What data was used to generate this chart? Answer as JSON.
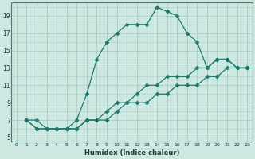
{
  "xlabel": "Humidex (Indice chaleur)",
  "bg_color": "#cce8e0",
  "grid_color": "#aaccC4",
  "line_color": "#1a7a6e",
  "xlim": [
    -0.5,
    23.5
  ],
  "ylim": [
    4.5,
    20.5
  ],
  "xticks": [
    0,
    1,
    2,
    3,
    4,
    5,
    6,
    7,
    8,
    9,
    10,
    11,
    12,
    13,
    14,
    15,
    16,
    17,
    18,
    19,
    20,
    21,
    22,
    23
  ],
  "yticks": [
    5,
    7,
    9,
    11,
    13,
    15,
    17,
    19
  ],
  "line1_x": [
    1,
    2,
    3,
    4,
    5,
    6,
    7,
    8,
    9,
    10,
    11,
    12,
    13,
    14,
    15,
    16,
    17,
    18,
    19,
    20,
    21,
    22,
    23
  ],
  "line1_y": [
    7,
    7,
    6,
    6,
    6,
    7,
    10,
    14,
    16,
    17,
    18,
    18,
    18,
    20,
    19.5,
    19,
    17,
    16,
    13,
    14,
    14,
    13,
    13
  ],
  "line2_x": [
    1,
    2,
    3,
    4,
    5,
    6,
    7,
    8,
    9,
    10,
    11,
    12,
    13,
    14,
    15,
    16,
    17,
    18,
    19,
    20,
    21,
    22,
    23
  ],
  "line2_y": [
    7,
    6,
    6,
    6,
    6,
    6,
    7,
    7,
    8,
    9,
    9,
    10,
    11,
    11,
    12,
    12,
    12,
    13,
    13,
    14,
    14,
    13,
    13
  ],
  "line3_x": [
    1,
    2,
    3,
    4,
    5,
    6,
    7,
    8,
    9,
    10,
    11,
    12,
    13,
    14,
    15,
    16,
    17,
    18,
    19,
    20,
    21,
    22,
    23
  ],
  "line3_y": [
    7,
    6,
    6,
    6,
    6,
    6,
    7,
    7,
    7,
    8,
    9,
    9,
    9,
    10,
    10,
    11,
    11,
    11,
    12,
    12,
    13,
    13,
    13
  ]
}
